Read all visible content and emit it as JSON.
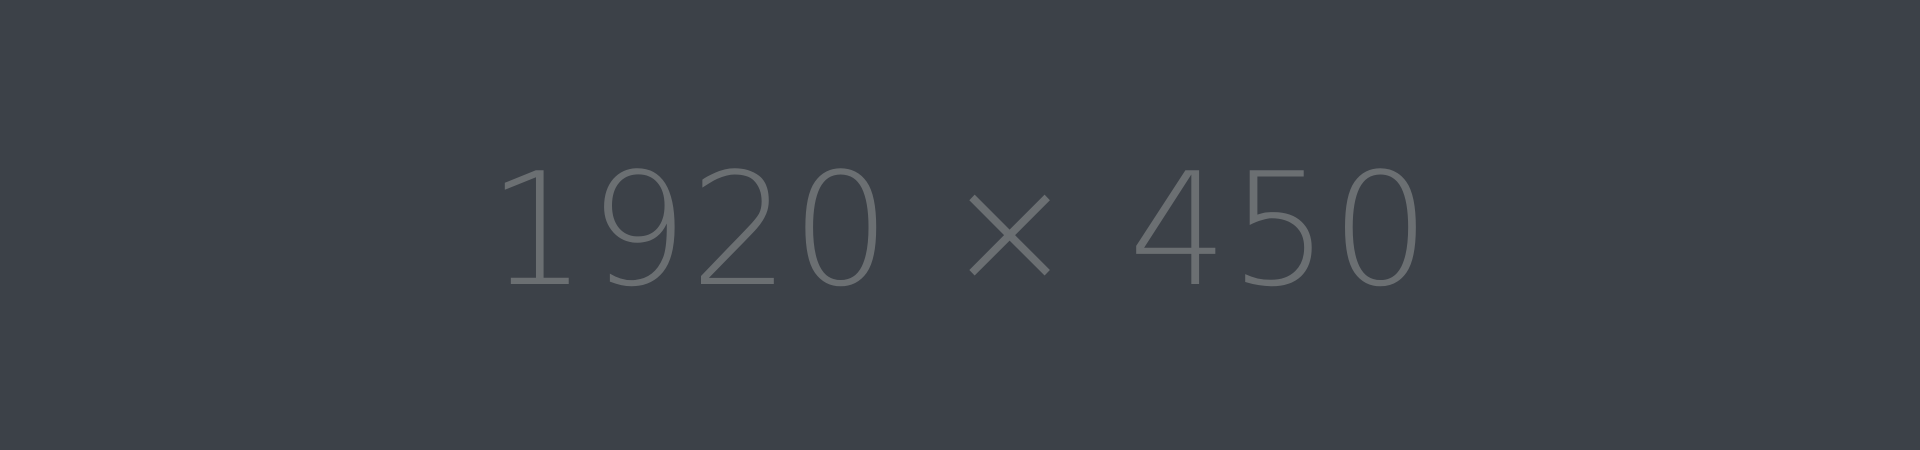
{
  "placeholder": {
    "text": "1920 × 450",
    "background_color": "#3c4148",
    "text_color": "#6b6f72"
  }
}
